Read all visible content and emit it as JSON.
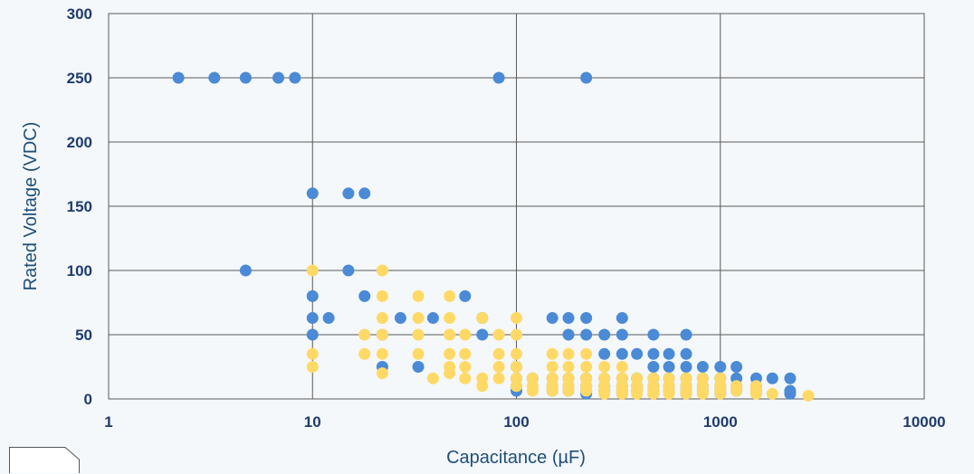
{
  "chart_data": {
    "type": "scatter",
    "title": "",
    "xlabel": "Capacitance (µF)",
    "ylabel": "Rated Voltage (VDC)",
    "x_scale": "log",
    "xlim": [
      1,
      10000
    ],
    "ylim": [
      0,
      300
    ],
    "x_ticks": [
      "1",
      "10",
      "100",
      "1000",
      "10000"
    ],
    "y_ticks": [
      "0",
      "50",
      "100",
      "150",
      "200",
      "250",
      "300"
    ],
    "grid": true,
    "legend": "none",
    "colors": {
      "series_a": "#4a8ad6",
      "series_b": "#ffd966",
      "grid": "#5a5a5a",
      "axis_text": "#1f3b6d"
    },
    "series": [
      {
        "color": "#4a8ad6",
        "points": [
          [
            2.2,
            250
          ],
          [
            3.3,
            250
          ],
          [
            4.7,
            250
          ],
          [
            6.8,
            250
          ],
          [
            8.2,
            250
          ],
          [
            82,
            250
          ],
          [
            220,
            250
          ],
          [
            10,
            160
          ],
          [
            15,
            160
          ],
          [
            18,
            160
          ],
          [
            4.7,
            100
          ],
          [
            15,
            100
          ],
          [
            10,
            80
          ],
          [
            18,
            80
          ],
          [
            56,
            80
          ],
          [
            10,
            63
          ],
          [
            12,
            63
          ],
          [
            27,
            63
          ],
          [
            39,
            63
          ],
          [
            68,
            63
          ],
          [
            150,
            63
          ],
          [
            180,
            63
          ],
          [
            220,
            63
          ],
          [
            330,
            63
          ],
          [
            10,
            50
          ],
          [
            22,
            50
          ],
          [
            68,
            50
          ],
          [
            180,
            50
          ],
          [
            220,
            50
          ],
          [
            270,
            50
          ],
          [
            330,
            50
          ],
          [
            470,
            50
          ],
          [
            680,
            50
          ],
          [
            270,
            35
          ],
          [
            330,
            35
          ],
          [
            390,
            35
          ],
          [
            470,
            35
          ],
          [
            560,
            35
          ],
          [
            680,
            35
          ],
          [
            22,
            25
          ],
          [
            33,
            25
          ],
          [
            100,
            25
          ],
          [
            470,
            25
          ],
          [
            560,
            25
          ],
          [
            680,
            25
          ],
          [
            820,
            25
          ],
          [
            1000,
            25
          ],
          [
            1200,
            25
          ],
          [
            100,
            16
          ],
          [
            120,
            16
          ],
          [
            150,
            16
          ],
          [
            180,
            16
          ],
          [
            220,
            16
          ],
          [
            270,
            16
          ],
          [
            330,
            16
          ],
          [
            390,
            16
          ],
          [
            470,
            16
          ],
          [
            560,
            16
          ],
          [
            680,
            16
          ],
          [
            820,
            16
          ],
          [
            1000,
            16
          ],
          [
            1200,
            16
          ],
          [
            1500,
            16
          ],
          [
            1800,
            16
          ],
          [
            2200,
            16
          ],
          [
            100,
            10
          ],
          [
            150,
            10
          ],
          [
            180,
            10
          ],
          [
            220,
            10
          ],
          [
            270,
            10
          ],
          [
            330,
            10
          ],
          [
            390,
            10
          ],
          [
            470,
            10
          ],
          [
            560,
            10
          ],
          [
            680,
            10
          ],
          [
            820,
            10
          ],
          [
            1000,
            10
          ],
          [
            1200,
            10
          ],
          [
            1500,
            10
          ],
          [
            100,
            6.3
          ],
          [
            150,
            6.3
          ],
          [
            180,
            6.3
          ],
          [
            220,
            6.3
          ],
          [
            270,
            6.3
          ],
          [
            330,
            6.3
          ],
          [
            390,
            6.3
          ],
          [
            470,
            6.3
          ],
          [
            560,
            6.3
          ],
          [
            680,
            6.3
          ],
          [
            820,
            6.3
          ],
          [
            1000,
            6.3
          ],
          [
            1200,
            6.3
          ],
          [
            1500,
            6.3
          ],
          [
            2200,
            6.3
          ],
          [
            220,
            4
          ],
          [
            330,
            4
          ],
          [
            470,
            4
          ],
          [
            680,
            4
          ],
          [
            1000,
            4
          ],
          [
            2200,
            4
          ]
        ]
      },
      {
        "color": "#ffd966",
        "points": [
          [
            10,
            100
          ],
          [
            22,
            100
          ],
          [
            22,
            80
          ],
          [
            33,
            80
          ],
          [
            47,
            80
          ],
          [
            22,
            63
          ],
          [
            33,
            63
          ],
          [
            47,
            63
          ],
          [
            68,
            63
          ],
          [
            100,
            63
          ],
          [
            18,
            50
          ],
          [
            22,
            50
          ],
          [
            33,
            50
          ],
          [
            47,
            50
          ],
          [
            56,
            50
          ],
          [
            82,
            50
          ],
          [
            100,
            50
          ],
          [
            10,
            35
          ],
          [
            18,
            35
          ],
          [
            22,
            35
          ],
          [
            33,
            35
          ],
          [
            47,
            35
          ],
          [
            56,
            35
          ],
          [
            82,
            35
          ],
          [
            100,
            35
          ],
          [
            150,
            35
          ],
          [
            180,
            35
          ],
          [
            220,
            35
          ],
          [
            10,
            25
          ],
          [
            22,
            20
          ],
          [
            39,
            16
          ],
          [
            47,
            25
          ],
          [
            47,
            20
          ],
          [
            56,
            25
          ],
          [
            56,
            16
          ],
          [
            68,
            16
          ],
          [
            68,
            10
          ],
          [
            82,
            25
          ],
          [
            82,
            16
          ],
          [
            100,
            25
          ],
          [
            100,
            16
          ],
          [
            100,
            10
          ],
          [
            120,
            16
          ],
          [
            120,
            10
          ],
          [
            150,
            25
          ],
          [
            150,
            16
          ],
          [
            150,
            10
          ],
          [
            180,
            25
          ],
          [
            180,
            16
          ],
          [
            180,
            10
          ],
          [
            220,
            25
          ],
          [
            220,
            16
          ],
          [
            220,
            10
          ],
          [
            270,
            25
          ],
          [
            270,
            16
          ],
          [
            270,
            10
          ],
          [
            330,
            25
          ],
          [
            330,
            16
          ],
          [
            330,
            10
          ],
          [
            390,
            16
          ],
          [
            390,
            10
          ],
          [
            470,
            16
          ],
          [
            470,
            10
          ],
          [
            560,
            16
          ],
          [
            560,
            10
          ],
          [
            680,
            16
          ],
          [
            680,
            10
          ],
          [
            820,
            16
          ],
          [
            820,
            10
          ],
          [
            1000,
            16
          ],
          [
            1000,
            10
          ],
          [
            1200,
            10
          ],
          [
            1500,
            10
          ],
          [
            120,
            6.3
          ],
          [
            150,
            6.3
          ],
          [
            180,
            6.3
          ],
          [
            220,
            6.3
          ],
          [
            270,
            6.3
          ],
          [
            330,
            6.3
          ],
          [
            390,
            6.3
          ],
          [
            470,
            6.3
          ],
          [
            560,
            6.3
          ],
          [
            680,
            6.3
          ],
          [
            820,
            6.3
          ],
          [
            1000,
            6.3
          ],
          [
            1200,
            6.3
          ],
          [
            1500,
            6.3
          ],
          [
            270,
            4
          ],
          [
            330,
            4
          ],
          [
            390,
            4
          ],
          [
            470,
            4
          ],
          [
            560,
            4
          ],
          [
            680,
            4
          ],
          [
            820,
            4
          ],
          [
            1000,
            4
          ],
          [
            1500,
            4
          ],
          [
            1800,
            4
          ],
          [
            2700,
            2.5
          ]
        ]
      }
    ]
  }
}
